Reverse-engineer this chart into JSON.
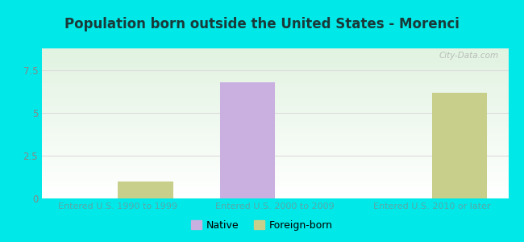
{
  "title": "Population born outside the United States - Morenci",
  "title_color": "#1a3a3a",
  "groups": [
    "Entered U.S. 1990 to 1999",
    "Entered U.S. 2000 to 2009",
    "Entered U.S. 2010 or later"
  ],
  "native_values": [
    0,
    6.8,
    0
  ],
  "foreign_values": [
    1.0,
    0,
    6.2
  ],
  "native_color": "#c9b0e0",
  "foreign_color": "#c8cf8a",
  "ylim": [
    0,
    8.8
  ],
  "yticks": [
    0,
    2.5,
    5,
    7.5
  ],
  "background_color": "#00e8e8",
  "bar_width": 0.35,
  "legend_native": "Native",
  "legend_foreign": "Foreign-born",
  "watermark": "City-Data.com",
  "xtick_color": "#55aaaa",
  "ytick_color": "#888888",
  "grid_color": "#dddddd"
}
